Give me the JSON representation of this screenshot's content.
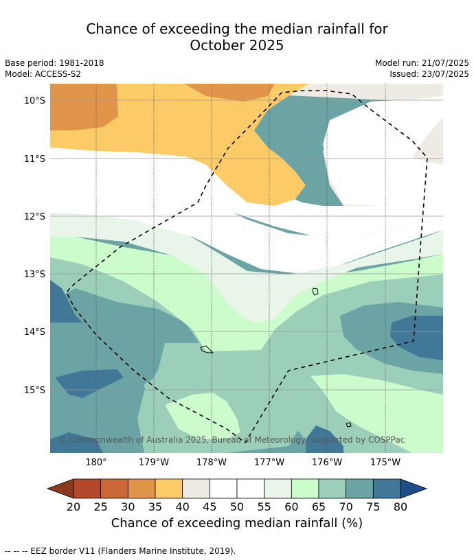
{
  "title": {
    "line1": "Chance of exceeding the median rainfall for",
    "line2": "October 2025"
  },
  "meta": {
    "base_period": "Base period: 1981-2018",
    "model": "Model: ACCESS-S2",
    "model_run": "Model run: 21/07/2025",
    "issued": "Issued: 23/07/2025"
  },
  "map": {
    "lat_labels": [
      "10°S",
      "11°S",
      "12°S",
      "13°S",
      "14°S",
      "15°S"
    ],
    "lon_labels": [
      "180°",
      "179°W",
      "178°W",
      "177°W",
      "176°W",
      "175°W"
    ],
    "copyright": "© Commonwealth of Australia 2025, Bureau of Meteorology, supported by COSPPac",
    "legend_line": "EEZ border"
  },
  "colorbar": {
    "ticks": [
      "20",
      "25",
      "30",
      "35",
      "40",
      "45",
      "50",
      "55",
      "60",
      "65",
      "70",
      "75",
      "80"
    ],
    "colors": [
      "#8b3a1e",
      "#b4482a",
      "#cb6838",
      "#e1954b",
      "#fccb67",
      "#efebe4",
      "#ffffff",
      "#ffffff",
      "#e9f5e9",
      "#ccfccc",
      "#9ccfb9",
      "#6ca3a5",
      "#417897",
      "#1f4d87"
    ],
    "label": "Chance of exceeding median rainfall (%)"
  },
  "footnote": "--  --  -- EEZ border V11 (Flanders Marine Institute, 2019)."
}
